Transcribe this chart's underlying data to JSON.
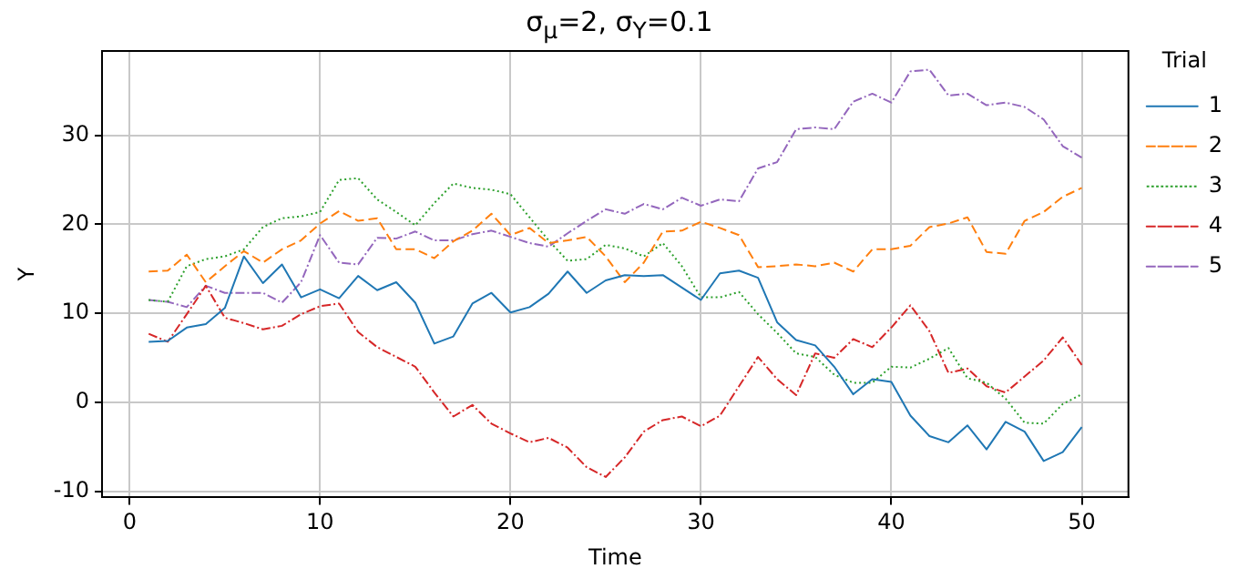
{
  "chart_data": {
    "type": "line",
    "title": "σ$_{μ}$=2, σ$_{Y}$=0.1",
    "xlabel": "Time",
    "ylabel": "Y",
    "legend_title": "Trial",
    "x": [
      1,
      2,
      3,
      4,
      5,
      6,
      7,
      8,
      9,
      10,
      11,
      12,
      13,
      14,
      15,
      16,
      17,
      18,
      19,
      20,
      21,
      22,
      23,
      24,
      25,
      26,
      27,
      28,
      29,
      30,
      31,
      32,
      33,
      34,
      35,
      36,
      37,
      38,
      39,
      40,
      41,
      42,
      43,
      44,
      45,
      46,
      47,
      48,
      49,
      50
    ],
    "series": [
      {
        "name": "1",
        "color": "#1f77b4",
        "line_style": "solid",
        "values": [
          6.8,
          6.9,
          8.4,
          8.8,
          10.6,
          16.4,
          13.4,
          15.5,
          11.8,
          12.7,
          11.7,
          14.2,
          12.6,
          13.5,
          11.2,
          6.6,
          7.4,
          11.1,
          12.3,
          10.1,
          10.7,
          12.2,
          14.7,
          12.3,
          13.7,
          14.3,
          14.2,
          14.3,
          12.9,
          11.5,
          14.5,
          14.8,
          14.0,
          9.0,
          7.0,
          6.4,
          4.0,
          0.9,
          2.6,
          2.3,
          -1.5,
          -3.8,
          -4.5,
          -2.6,
          -5.3,
          -2.2,
          -3.3,
          -6.6,
          -5.6,
          -2.8
        ]
      },
      {
        "name": "2",
        "color": "#ff7f0e",
        "line_style": "dashed",
        "values": [
          14.7,
          14.8,
          16.6,
          13.5,
          15.3,
          17.0,
          15.7,
          17.2,
          18.2,
          20.1,
          21.5,
          20.4,
          20.7,
          17.2,
          17.2,
          16.2,
          18.1,
          19.3,
          21.2,
          18.8,
          19.6,
          17.9,
          18.2,
          18.6,
          16.4,
          13.5,
          15.7,
          19.2,
          19.3,
          20.3,
          19.6,
          18.8,
          15.2,
          15.3,
          15.5,
          15.3,
          15.7,
          14.7,
          17.2,
          17.2,
          17.6,
          19.7,
          20.1,
          20.8,
          16.9,
          16.7,
          20.4,
          21.4,
          23.1,
          24.1
        ]
      },
      {
        "name": "3",
        "color": "#2ca02c",
        "line_style": "dotted",
        "values": [
          11.5,
          11.3,
          15.3,
          16.1,
          16.4,
          17.2,
          19.7,
          20.7,
          20.9,
          21.4,
          25.0,
          25.2,
          22.8,
          21.4,
          19.9,
          22.4,
          24.6,
          24.1,
          23.9,
          23.4,
          20.8,
          18.2,
          15.9,
          16.1,
          17.7,
          17.3,
          16.4,
          17.9,
          15.3,
          11.8,
          11.8,
          12.4,
          9.9,
          7.8,
          5.5,
          5.1,
          3.1,
          2.2,
          2.2,
          4.0,
          3.9,
          4.9,
          6.1,
          2.7,
          2.2,
          0.4,
          -2.3,
          -2.4,
          -0.2,
          0.9
        ]
      },
      {
        "name": "4",
        "color": "#d62728",
        "line_style": "dashdot",
        "values": [
          7.7,
          6.8,
          9.9,
          13.1,
          9.5,
          8.9,
          8.2,
          8.6,
          9.9,
          10.8,
          11.1,
          7.9,
          6.2,
          5.1,
          4.0,
          1.1,
          -1.6,
          -0.3,
          -2.4,
          -3.5,
          -4.5,
          -4.0,
          -5.1,
          -7.3,
          -8.4,
          -6.2,
          -3.3,
          -2.0,
          -1.6,
          -2.7,
          -1.5,
          1.8,
          5.1,
          2.6,
          0.8,
          5.5,
          5.0,
          7.1,
          6.2,
          8.4,
          10.9,
          8.0,
          3.3,
          3.8,
          1.8,
          1.1,
          2.9,
          4.7,
          7.3,
          4.2
        ]
      },
      {
        "name": "5",
        "color": "#9467bd",
        "line_style": "dashdot",
        "values": [
          11.5,
          11.3,
          10.7,
          13.1,
          12.3,
          12.3,
          12.3,
          11.2,
          13.5,
          18.8,
          15.7,
          15.5,
          18.5,
          18.4,
          19.2,
          18.2,
          18.2,
          18.9,
          19.3,
          18.6,
          17.9,
          17.5,
          19.0,
          20.4,
          21.7,
          21.2,
          22.3,
          21.7,
          23.0,
          22.1,
          22.8,
          22.6,
          26.3,
          27.0,
          30.7,
          30.9,
          30.7,
          33.8,
          34.7,
          33.7,
          37.2,
          37.4,
          34.5,
          34.7,
          33.4,
          33.7,
          33.2,
          31.8,
          28.8,
          27.5
        ]
      }
    ],
    "xlim": [
      -1.45,
      52.45
    ],
    "ylim": [
      -10.7,
      39.5
    ],
    "xticks": [
      0,
      10,
      20,
      30,
      40,
      50
    ],
    "yticks": [
      -10,
      0,
      10,
      20,
      30
    ],
    "grid": true,
    "legend": "top right",
    "marker": "none"
  }
}
